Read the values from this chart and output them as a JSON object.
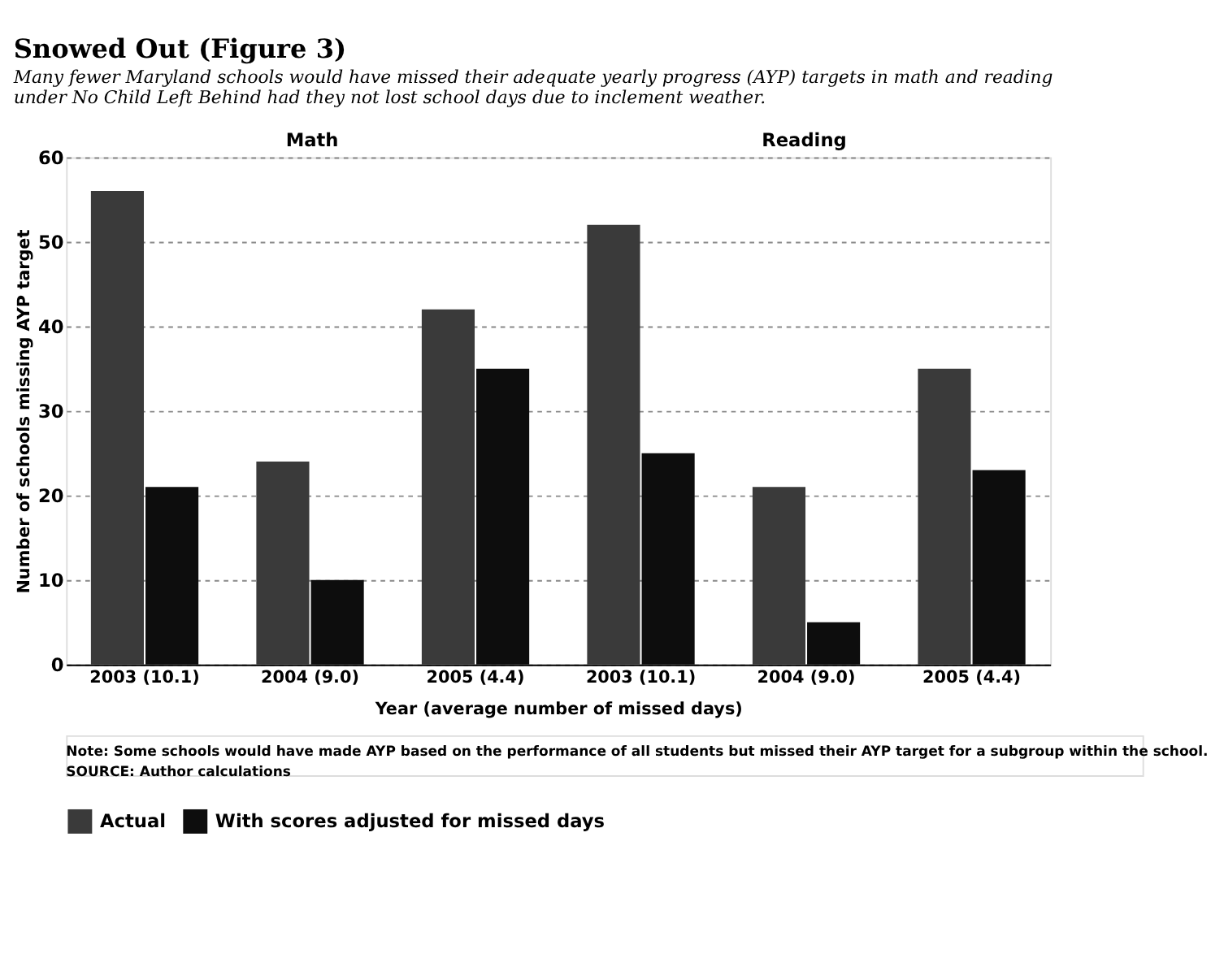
{
  "chart_data": {
    "type": "bar",
    "title": "Snowed Out (Figure 3)",
    "subtitle": "Many fewer Maryland schools would have missed their adequate yearly progress (AYP) targets in math and reading under No Child Left Behind had they not lost school days due to inclement weather.",
    "xlabel": "Year (average number of missed days)",
    "ylabel": "Number of schools missing AYP target",
    "categories": [
      "2003 (10.1)",
      "2004 (9.0)",
      "2005 (4.4)",
      "2003 (10.1)",
      "2004 (9.0)",
      "2005 (4.4)"
    ],
    "series": [
      {
        "name": "Actual",
        "color": "#3a3a3a",
        "values": [
          56,
          24,
          42,
          52,
          21,
          35
        ]
      },
      {
        "name": "With scores adjusted for missed days",
        "color": "#0d0d0d",
        "values": [
          21,
          10,
          35,
          25,
          5,
          23
        ]
      }
    ],
    "ylim": [
      0,
      60
    ],
    "yticks": [
      0,
      10,
      20,
      30,
      40,
      50,
      60
    ],
    "grid": "y",
    "legend": "bottom",
    "annotations": [
      "Math",
      "Reading",
      "Note: Some schools would have made AYP based on the performance of all students but missed their AYP target for a subgroup within the school.",
      "SOURCE: Author calculations"
    ]
  }
}
